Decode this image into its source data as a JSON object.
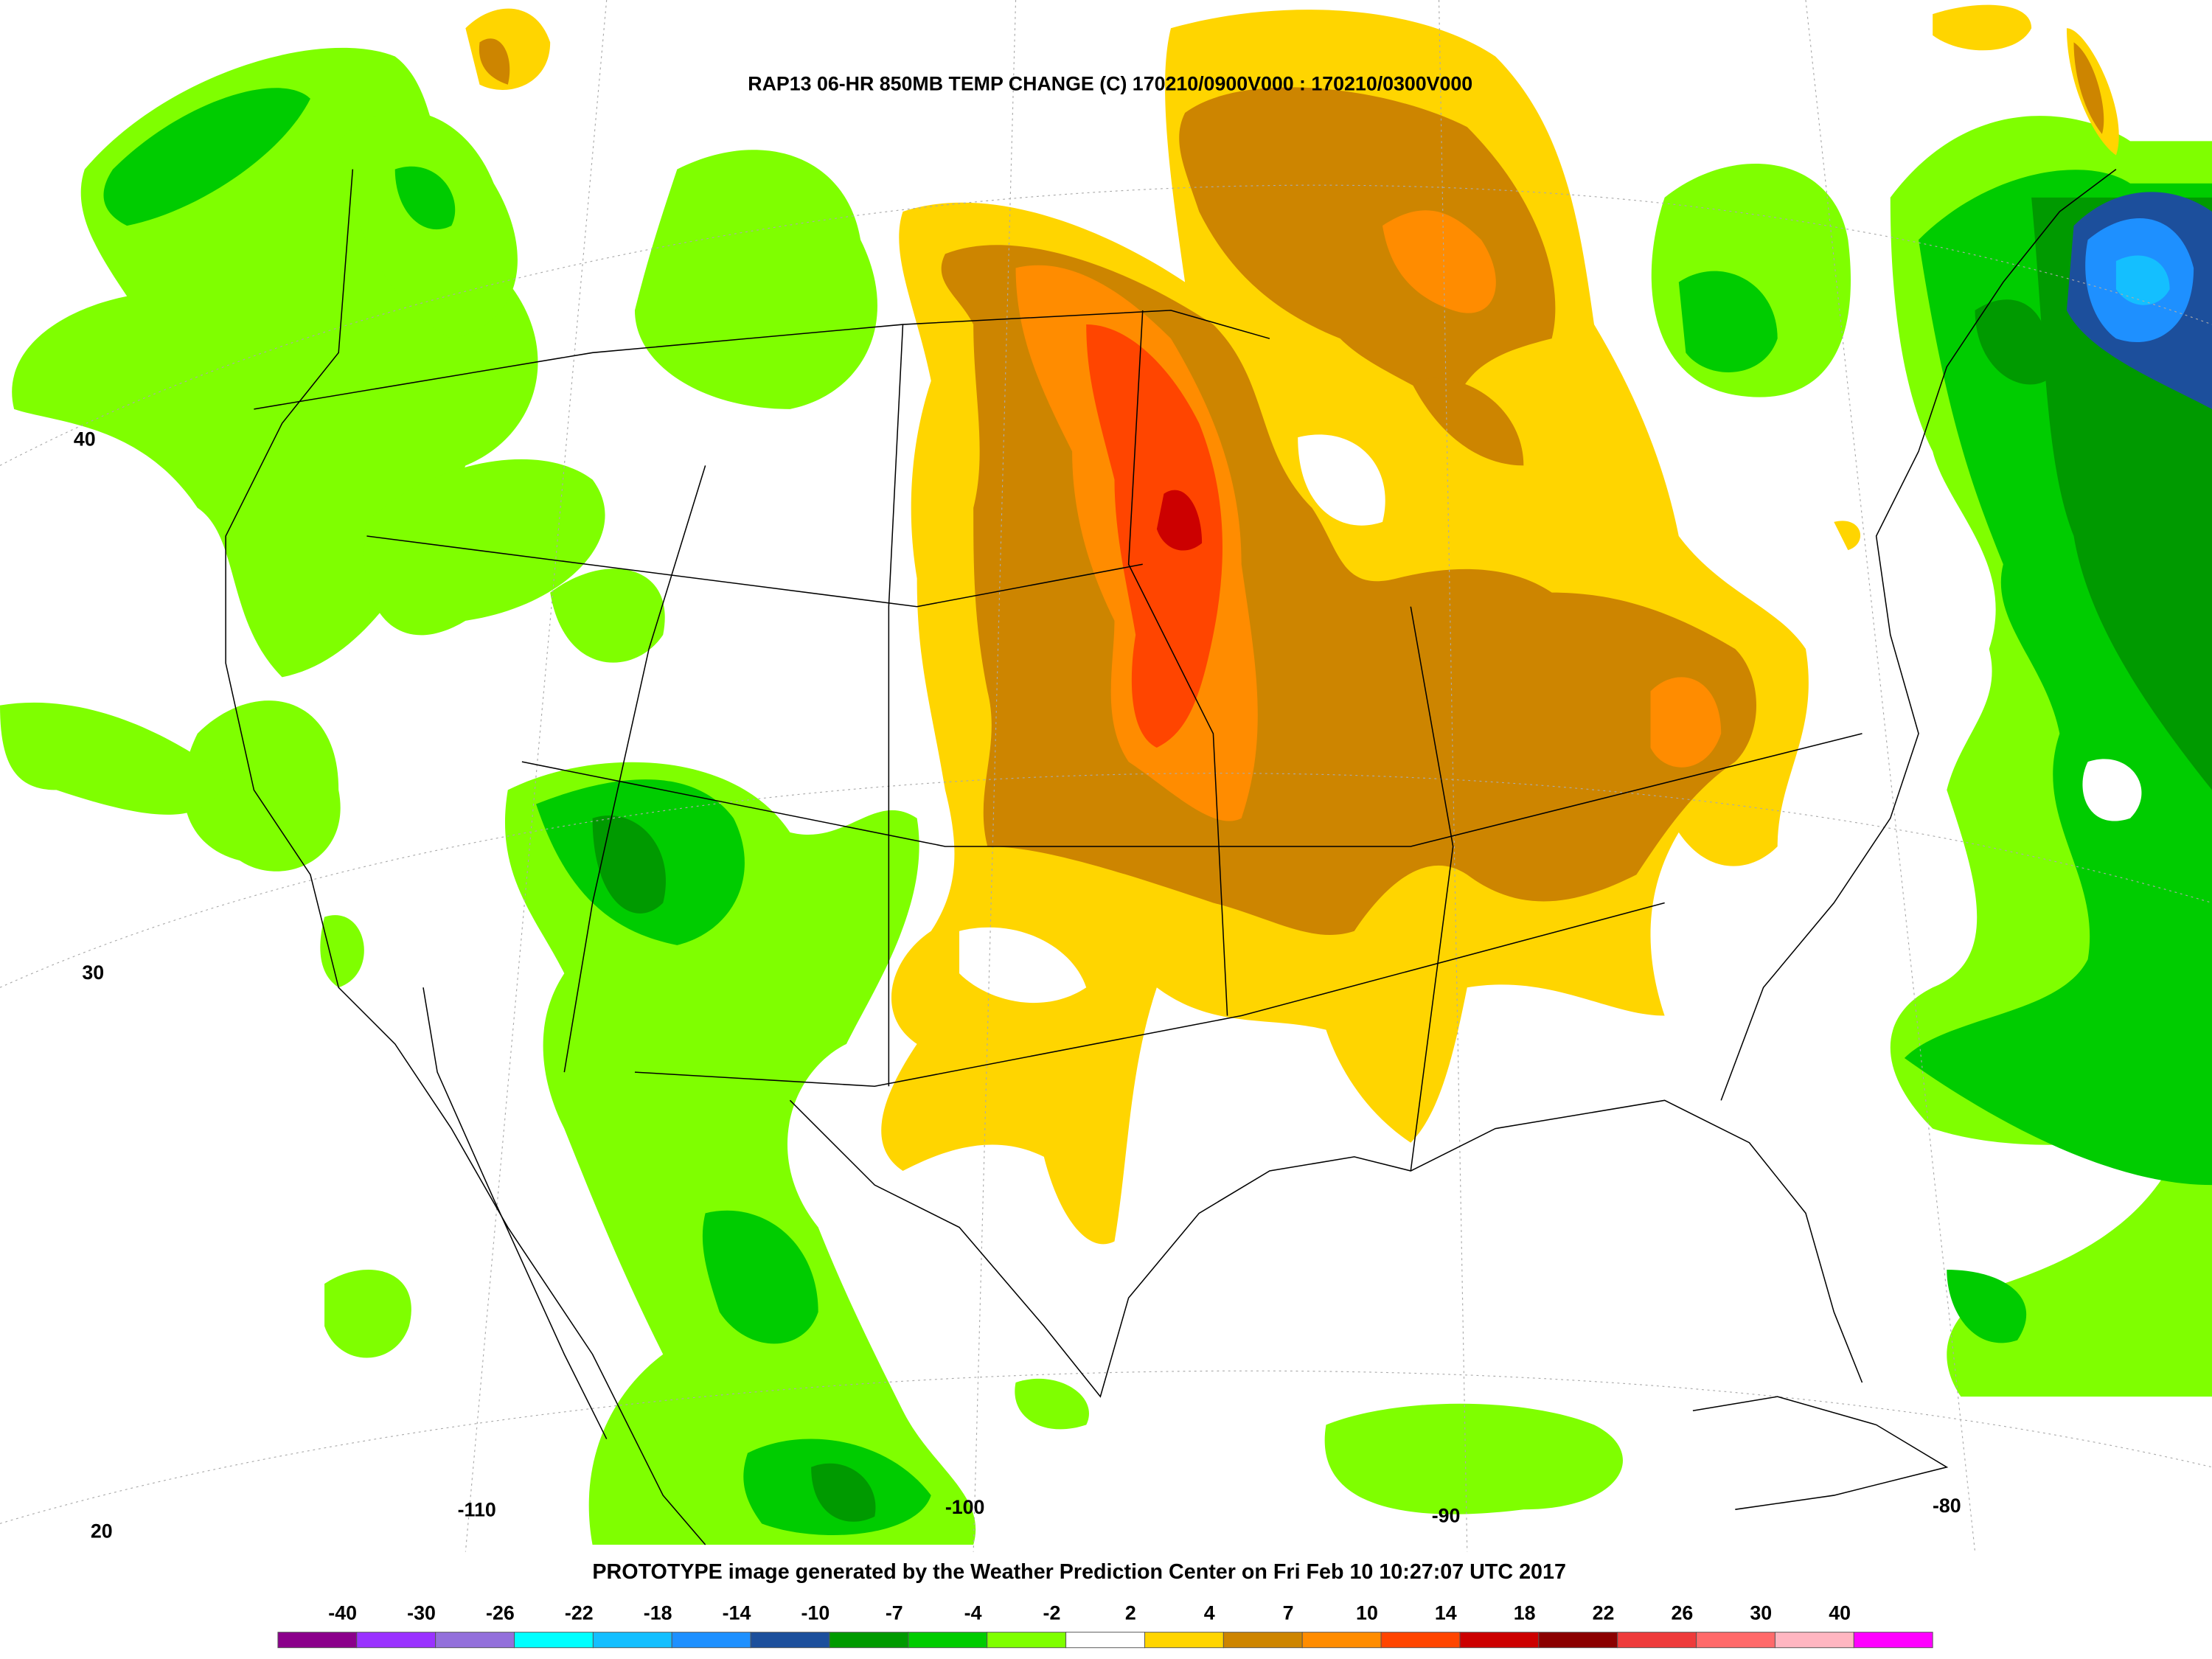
{
  "title": "RAP13 06-HR 850MB TEMP CHANGE (C) 170210/0900V000 : 170210/0300V000",
  "footer": "PROTOTYPE image generated by the Weather Prediction Center on Fri Feb 10 10:27:07 UTC 2017",
  "lat_labels": [
    40,
    30,
    20
  ],
  "lon_labels": [
    -110,
    -100,
    -90,
    -80
  ],
  "colorbar": {
    "labels": [
      -40,
      -30,
      -26,
      -22,
      -18,
      -14,
      -10,
      -7,
      -4,
      -2,
      2,
      4,
      7,
      10,
      14,
      18,
      22,
      26,
      30,
      40
    ],
    "colors": [
      "#8b008b",
      "#9a32ff",
      "#9370db",
      "#00ffff",
      "#14bfff",
      "#1e90ff",
      "#1c4f9c",
      "#009a00",
      "#00cc00",
      "#7fff00",
      "#ffffff",
      "#ffd500",
      "#cd8500",
      "#ff8c00",
      "#ff4500",
      "#cc0000",
      "#8b0000",
      "#ee3b3b",
      "#ff6a6a",
      "#ffb6c1",
      "#ff00ff"
    ]
  }
}
